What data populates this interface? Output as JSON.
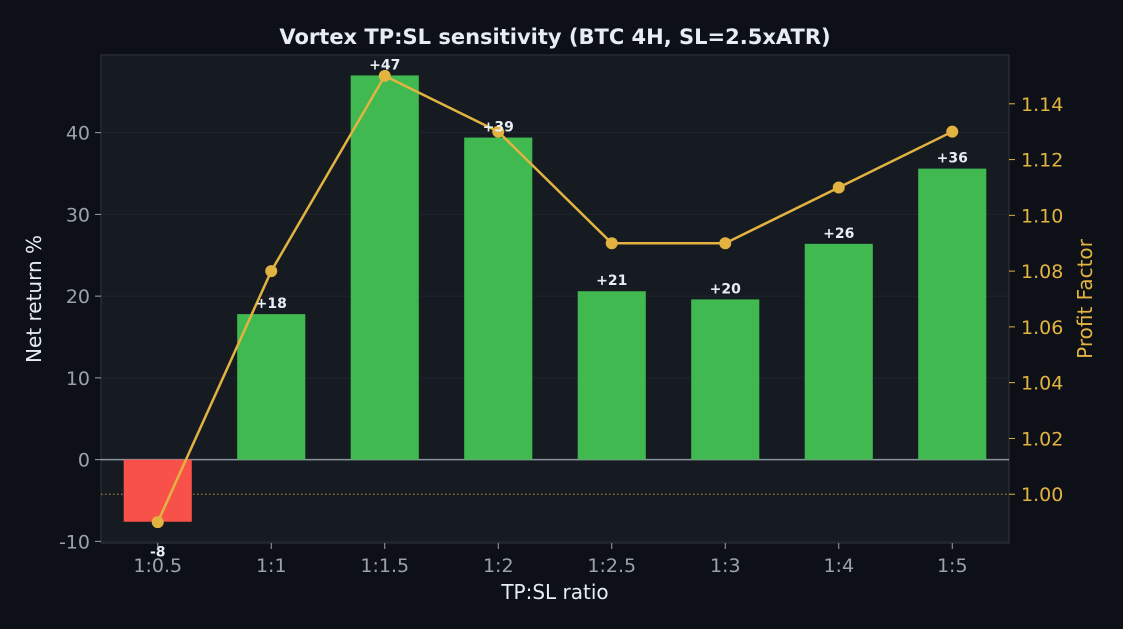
{
  "colors": {
    "background": "#0d1117",
    "plot_bg": "#161b22",
    "grid": "#1f252d",
    "axis_text": "#9aa3ad",
    "label_text": "#e6edf3",
    "positive": "#3fb950",
    "negative": "#f85149",
    "line": "#e3b341",
    "zero_line": "#8b949e"
  },
  "chart_data": {
    "type": "bar",
    "title": "Vortex TP:SL sensitivity (BTC 4H, SL=2.5xATR)",
    "xlabel": "TP:SL ratio",
    "ylabel": "Net return %",
    "y2label": "Profit Factor",
    "categories": [
      "1:0.5",
      "1:1",
      "1:1.5",
      "1:2",
      "1:2.5",
      "1:3",
      "1:4",
      "1:5"
    ],
    "series": [
      {
        "name": "",
        "axis": "left",
        "type": "bar",
        "values": [
          -7.6,
          17.8,
          47.0,
          39.4,
          20.6,
          19.6,
          26.4,
          35.6
        ],
        "data_labels": [
          "-8",
          "+18",
          "+47",
          "+39",
          "+21",
          "+20",
          "+26",
          "+36"
        ]
      },
      {
        "name": "",
        "axis": "right",
        "type": "line",
        "values": [
          0.99,
          1.08,
          1.15,
          1.13,
          1.09,
          1.09,
          1.11,
          1.13
        ]
      }
    ],
    "ylim": [
      -10.2,
      49.5
    ],
    "y2lim": [
      0.9825,
      1.1575
    ],
    "yticks": [
      -10,
      0,
      10,
      20,
      30,
      40
    ],
    "y2ticks": [
      1.0,
      1.02,
      1.04,
      1.06,
      1.08,
      1.1,
      1.12,
      1.14
    ],
    "reference_lines": [
      {
        "axis": "left",
        "value": 0,
        "style": "solid"
      },
      {
        "axis": "right",
        "value": 1.0,
        "style": "dotted"
      }
    ],
    "grid": true
  }
}
